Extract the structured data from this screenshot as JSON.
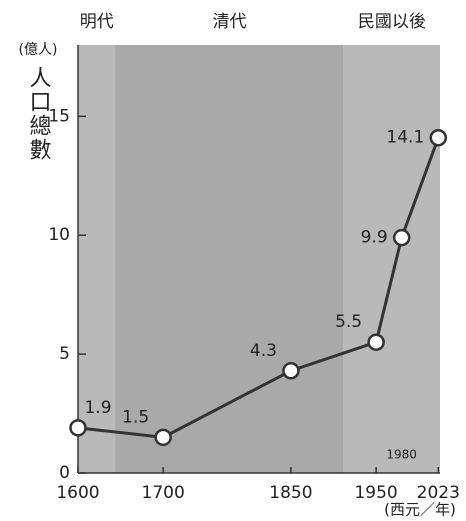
{
  "chart_data": {
    "type": "line",
    "eras": [
      {
        "label": "明代",
        "start": 1600,
        "end": 1644,
        "color": "#b9b9b9"
      },
      {
        "label": "清代",
        "start": 1644,
        "end": 1912,
        "color": "#a9a9a9"
      },
      {
        "label": "民國以後",
        "start": 1912,
        "end": 2025,
        "color": "#b9b9b9"
      }
    ],
    "y_unit": "(億人)",
    "y_label": "人口總數",
    "x_unit": "(西元／年)",
    "x": [
      1600,
      1700,
      1850,
      1950,
      1980,
      2023
    ],
    "series": [
      {
        "name": "人口總數",
        "color": "#333333",
        "values": [
          1.9,
          1.5,
          4.3,
          5.5,
          9.9,
          14.1
        ]
      }
    ],
    "xlim": [
      1600,
      2025
    ],
    "ylim": [
      0,
      18
    ],
    "xticks": [
      1600,
      1700,
      1850,
      1950,
      2023
    ],
    "marked_x": 1980,
    "yticks": [
      0,
      5,
      10,
      15
    ]
  }
}
